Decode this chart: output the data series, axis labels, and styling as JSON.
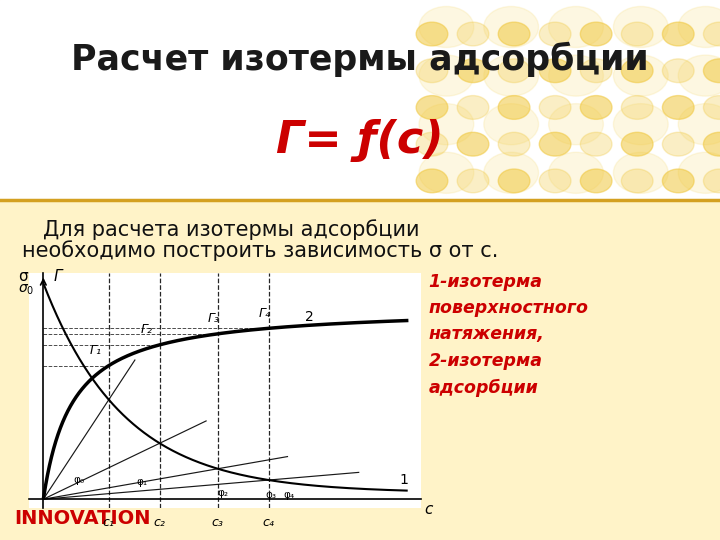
{
  "title_line1": "Расчет изотермы адсорбции",
  "title_line2": "Γ= ƒ(c)",
  "title_color": "#CC0000",
  "title1_color": "#1A1A1A",
  "background_title": "#FFFFFF",
  "background_body": "#FFF3C8",
  "body_text_line1": "Для расчета изотермы адсорбции",
  "body_text_line2": "необходимо построить зависимость σ от c.",
  "legend_text1": "1-изотерма\nповерхностного\nнатяжения,\n2-изотерма\nадсорбции",
  "legend_color": "#CC0000",
  "innovation_text": "INNOVATION",
  "innovation_color": "#CC0000",
  "c1": 0.18,
  "c2": 0.32,
  "c3": 0.48,
  "c4": 0.62,
  "separator_color": "#D4A020",
  "graph_bg": "#FFFFFF",
  "honeycomb_color": "#F0C840"
}
